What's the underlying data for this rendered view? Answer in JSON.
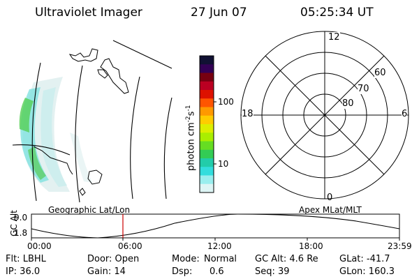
{
  "header": {
    "instrument": "Ultraviolet Imager",
    "date": "27 Jun 07",
    "time": "05:25:34 UT"
  },
  "colorbar": {
    "label_main": "photon cm",
    "label_exp1": "-2",
    "label_mid": "s",
    "label_exp2": "-1",
    "tick_high": "100",
    "tick_low": "10",
    "colors": [
      "#111133",
      "#330055",
      "#770011",
      "#bb0022",
      "#dd1100",
      "#ff5500",
      "#ff9900",
      "#ffcc00",
      "#ddee00",
      "#aaee00",
      "#66dd22",
      "#33cc55",
      "#22ccaa",
      "#33dddd",
      "#99eeee",
      "#ddf5f5"
    ]
  },
  "polar": {
    "mlt_top": "12",
    "mlt_left": "18",
    "mlt_right": "6",
    "mlt_bottom": "0",
    "lat_60": "60",
    "lat_70": "70",
    "lat_80": "80"
  },
  "altitude_plot": {
    "ylabel": "GC Alt",
    "ytick_high": "9.0",
    "ytick_low": "1.8",
    "left_caption": "Geographic Lat/Lon",
    "right_caption": "Apex MLat/MLT",
    "xticks": [
      "00:00",
      "06:00",
      "12:00",
      "18:00",
      "23:59"
    ],
    "marker_color": "#cc0000"
  },
  "status": {
    "flt": "Flt: LBHL",
    "door": "Door: Open",
    "mode_label": "Mode:",
    "mode_value": "Normal",
    "gc_alt": "GC Alt: 4.6 Re",
    "glat": "GLat: -41.7",
    "ip": "IP: 36.0",
    "gain": "Gain: 14",
    "dsp_label": "Dsp:",
    "dsp_value": "0.6",
    "seq": "Seq: 39",
    "glon": "GLon: 160.3"
  }
}
